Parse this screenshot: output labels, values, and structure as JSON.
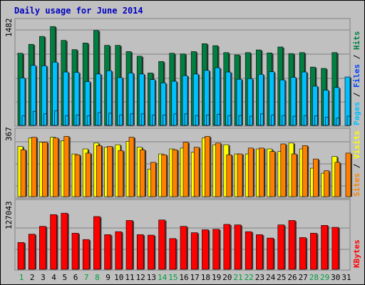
{
  "colors": {
    "background": "#C0C0C0",
    "panel": "#C0C0C0",
    "title": "#0000C0",
    "hits": "#008040",
    "files": "#00C0FF",
    "pages": "#00C0FF",
    "pages_label": "#00C0FF",
    "files_label": "#0040FF",
    "hits_label": "#008040",
    "visits": "#FFFF00",
    "sites": "#FF8000",
    "kbytes": "#FF0000",
    "weekend_day": "#00A040",
    "weekday_day": "#000000"
  },
  "chart_data": [
    {
      "type": "bar",
      "title": "Daily usage for June 2014",
      "panel": "hits_files_pages",
      "ymax_label": "1482",
      "ylim": [
        0,
        1600
      ],
      "categories": [
        "1",
        "2",
        "3",
        "4",
        "5",
        "6",
        "7",
        "8",
        "9",
        "10",
        "11",
        "12",
        "13",
        "14",
        "15",
        "16",
        "17",
        "18",
        "19",
        "20",
        "21",
        "22",
        "23",
        "24",
        "25",
        "26",
        "27",
        "28",
        "29",
        "30",
        "31"
      ],
      "series": [
        {
          "name": "Hits",
          "values": [
            1095,
            1230,
            1350,
            1500,
            1290,
            1150,
            1250,
            1440,
            1215,
            1215,
            1120,
            1050,
            795,
            970,
            1095,
            1085,
            1120,
            1240,
            1210,
            1105,
            1070,
            1105,
            1145,
            1100,
            1190,
            1090,
            1105,
            885,
            865,
            1105,
            0
          ]
        },
        {
          "name": "Files",
          "values": [
            720,
            910,
            905,
            960,
            810,
            805,
            665,
            780,
            830,
            725,
            795,
            780,
            695,
            645,
            670,
            755,
            780,
            835,
            875,
            810,
            700,
            710,
            775,
            815,
            690,
            730,
            810,
            595,
            535,
            575,
            735
          ]
        },
        {
          "name": "Pages",
          "values": [
            145,
            215,
            175,
            220,
            150,
            160,
            145,
            195,
            185,
            160,
            175,
            175,
            155,
            160,
            175,
            175,
            150,
            160,
            170,
            150,
            150,
            140,
            175,
            155,
            150,
            140,
            150,
            145,
            125,
            110,
            140
          ]
        }
      ],
      "series_labels": [
        "Pages",
        "Files",
        "Hits"
      ]
    },
    {
      "type": "bar",
      "panel": "sites_visits",
      "ymax_label": "367",
      "ylim": [
        0,
        400
      ],
      "categories": [
        "1",
        "2",
        "3",
        "4",
        "5",
        "6",
        "7",
        "8",
        "9",
        "10",
        "11",
        "12",
        "13",
        "14",
        "15",
        "16",
        "17",
        "18",
        "19",
        "20",
        "21",
        "22",
        "23",
        "24",
        "25",
        "26",
        "27",
        "28",
        "29",
        "30",
        "31"
      ],
      "series": [
        {
          "name": "Visits",
          "values": [
            300,
            350,
            325,
            355,
            335,
            255,
            285,
            320,
            295,
            310,
            330,
            295,
            165,
            255,
            285,
            290,
            265,
            350,
            310,
            310,
            255,
            255,
            285,
            285,
            270,
            320,
            285,
            170,
            140,
            240,
            0
          ]
        },
        {
          "name": "Sites",
          "values": [
            280,
            355,
            325,
            350,
            360,
            250,
            260,
            305,
            300,
            275,
            355,
            280,
            205,
            250,
            280,
            325,
            295,
            360,
            320,
            250,
            255,
            290,
            290,
            270,
            315,
            255,
            305,
            225,
            155,
            205,
            260
          ]
        }
      ],
      "series_labels": [
        "Sites",
        "Visits"
      ]
    },
    {
      "type": "bar",
      "panel": "kbytes",
      "ymax_label": "127043",
      "ylim": [
        0,
        140000
      ],
      "categories": [
        "1",
        "2",
        "3",
        "4",
        "5",
        "6",
        "7",
        "8",
        "9",
        "10",
        "11",
        "12",
        "13",
        "14",
        "15",
        "16",
        "17",
        "18",
        "19",
        "20",
        "21",
        "22",
        "23",
        "24",
        "25",
        "26",
        "27",
        "28",
        "29",
        "30",
        "31"
      ],
      "series": [
        {
          "name": "KBytes",
          "values": [
            55000,
            72000,
            88000,
            112000,
            115000,
            74000,
            61000,
            108000,
            71000,
            77000,
            100000,
            71000,
            70000,
            101000,
            63000,
            88000,
            75000,
            81000,
            82000,
            92000,
            91000,
            77000,
            71000,
            64000,
            91000,
            100000,
            65000,
            74000,
            90000,
            86000,
            0
          ]
        }
      ],
      "series_labels": [
        "KBytes"
      ]
    }
  ],
  "day_labels": [
    "1",
    "2",
    "3",
    "4",
    "5",
    "6",
    "7",
    "8",
    "9",
    "10",
    "11",
    "12",
    "13",
    "14",
    "15",
    "16",
    "17",
    "18",
    "19",
    "20",
    "21",
    "22",
    "23",
    "24",
    "25",
    "26",
    "27",
    "28",
    "29",
    "30",
    "31"
  ],
  "weekend_days": [
    1,
    7,
    8,
    14,
    15,
    21,
    22,
    28,
    29
  ]
}
